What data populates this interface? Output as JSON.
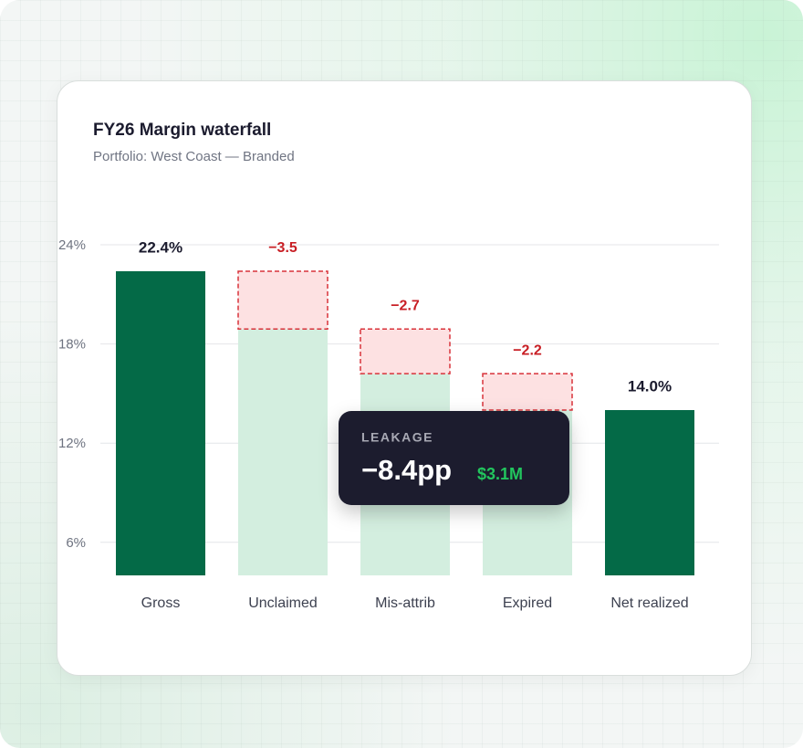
{
  "chart_data": {
    "type": "waterfall",
    "title": "FY26 Margin waterfall",
    "subtitle": "Portfolio: West Coast — Branded",
    "categories": [
      "Gross",
      "Unclaimed",
      "Mis-attrib",
      "Expired",
      "Net realized"
    ],
    "values": [
      22.4,
      -3.5,
      -2.7,
      -2.2,
      14.0
    ],
    "value_labels": [
      "22.4%",
      "−3.5",
      "−2.7",
      "−2.2",
      "14.0%"
    ],
    "kinds": [
      "total",
      "delta",
      "delta",
      "delta",
      "total"
    ],
    "colors": {
      "total": "#046a47",
      "base": "#d3eedf",
      "loss_fill": "#fde1e2",
      "loss_stroke": "#d8323a"
    },
    "ylim": [
      4,
      24
    ],
    "yticks": [
      {
        "value": 6,
        "label": "6%"
      },
      {
        "value": 12,
        "label": "12%"
      },
      {
        "value": 18,
        "label": "18%"
      },
      {
        "value": 24,
        "label": "24%"
      }
    ],
    "grid": true,
    "callout": {
      "label": "LEAKAGE",
      "value": "−8.4pp",
      "amount": "$3.1M"
    }
  }
}
